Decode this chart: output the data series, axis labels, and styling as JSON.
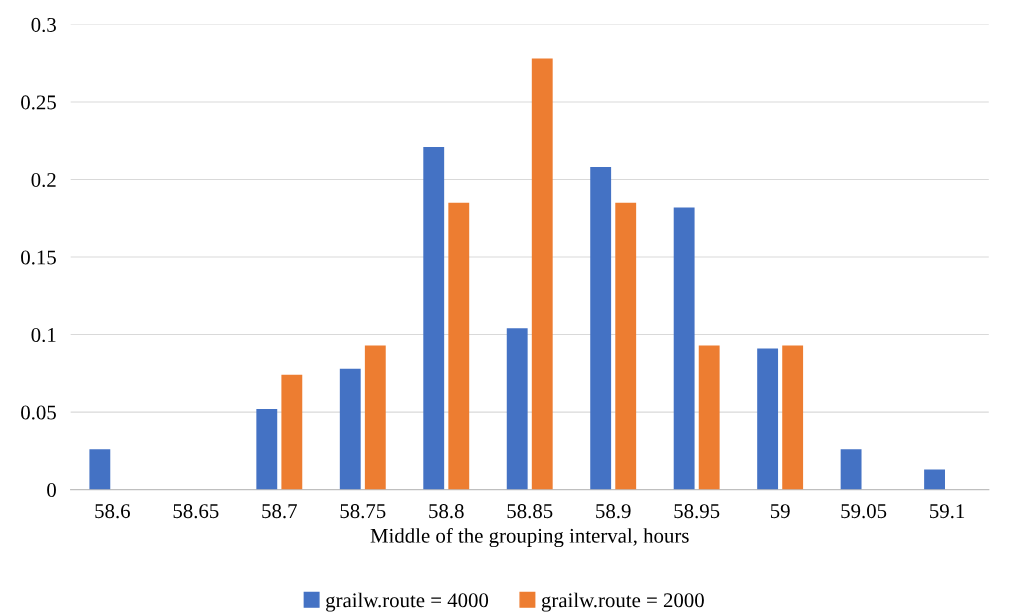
{
  "chart_data": {
    "type": "bar",
    "xlabel": "Middle of the grouping interval, hours",
    "categories": [
      "58.6",
      "58.65",
      "58.7",
      "58.75",
      "58.8",
      "58.85",
      "58.9",
      "58.95",
      "59",
      "59.05",
      "59.1"
    ],
    "series": [
      {
        "name": "grailw.route = 4000",
        "color": "#4472c4",
        "values": [
          0.026,
          null,
          0.052,
          0.078,
          0.221,
          0.104,
          0.208,
          0.182,
          0.091,
          0.026,
          0.013
        ]
      },
      {
        "name": "grailw.route = 2000",
        "color": "#ed7d31",
        "values": [
          null,
          null,
          0.074,
          0.093,
          0.185,
          0.278,
          0.185,
          0.093,
          0.093,
          null,
          null
        ]
      }
    ],
    "ylim": [
      0,
      0.3
    ],
    "yticks": [
      0,
      0.05,
      0.1,
      0.15,
      0.2,
      0.25,
      0.3
    ],
    "grid": "y",
    "legend": "bottom"
  }
}
